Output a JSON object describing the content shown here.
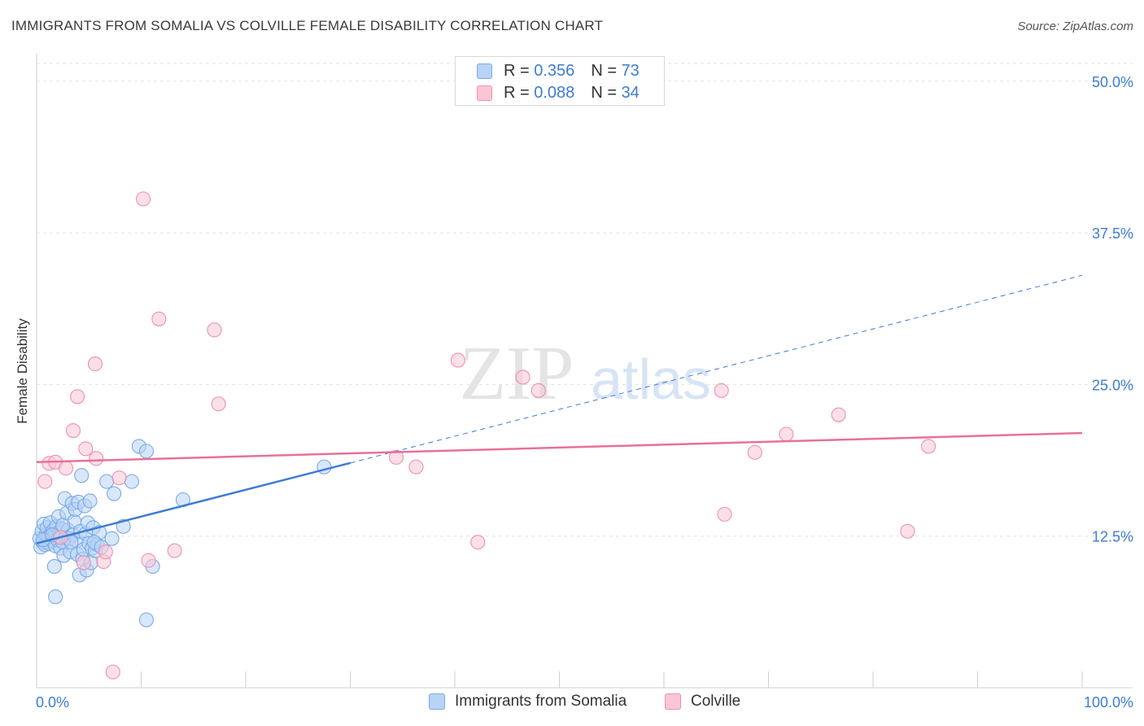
{
  "title": "IMMIGRANTS FROM SOMALIA VS COLVILLE FEMALE DISABILITY CORRELATION CHART",
  "source": "Source: ZipAtlas.com",
  "watermark": {
    "zip": "ZIP",
    "atlas": "atlas"
  },
  "legend": {
    "r_label": "R =",
    "n_label": "N =",
    "entries": [
      {
        "name": "Immigrants from Somalia",
        "r": "0.356",
        "n": "73",
        "color": "#7aaae8",
        "fill": "#b8d3f5"
      },
      {
        "name": "Colville",
        "r": "0.088",
        "n": "34",
        "color": "#ef8fb0",
        "fill": "#f9c6d6"
      }
    ]
  },
  "chart_data": {
    "type": "scatter",
    "title": "IMMIGRANTS FROM SOMALIA VS COLVILLE FEMALE DISABILITY CORRELATION CHART",
    "xlabel": "",
    "ylabel": "Female Disability",
    "xlim": [
      0,
      100
    ],
    "ylim": [
      0,
      52
    ],
    "x_tick_labels": [
      "0.0%",
      "100.0%"
    ],
    "y_ticks": [
      12.5,
      25.0,
      37.5,
      50.0
    ],
    "y_tick_labels": [
      "12.5%",
      "25.0%",
      "37.5%",
      "50.0%"
    ],
    "grid": true,
    "series": [
      {
        "name": "Immigrants from Somalia",
        "color": "#3d7cd4",
        "points": [
          [
            0.3,
            12.3
          ],
          [
            0.4,
            11.6
          ],
          [
            0.5,
            12.9
          ],
          [
            0.6,
            12.0
          ],
          [
            0.7,
            13.5
          ],
          [
            0.8,
            11.8
          ],
          [
            0.9,
            12.6
          ],
          [
            1.0,
            13.2
          ],
          [
            1.1,
            12.4
          ],
          [
            1.2,
            11.9
          ],
          [
            1.3,
            13.6
          ],
          [
            1.4,
            12.7
          ],
          [
            1.5,
            12.1
          ],
          [
            1.6,
            13.0
          ],
          [
            1.7,
            12.5
          ],
          [
            1.8,
            11.7
          ],
          [
            1.9,
            13.3
          ],
          [
            2.0,
            12.2
          ],
          [
            2.1,
            14.1
          ],
          [
            2.2,
            12.8
          ],
          [
            2.3,
            11.5
          ],
          [
            2.4,
            13.1
          ],
          [
            2.5,
            12.0
          ],
          [
            2.6,
            10.9
          ],
          [
            2.7,
            15.6
          ],
          [
            2.8,
            12.4
          ],
          [
            2.9,
            14.4
          ],
          [
            3.0,
            13.0
          ],
          [
            3.1,
            12.3
          ],
          [
            3.2,
            11.2
          ],
          [
            3.4,
            15.2
          ],
          [
            3.5,
            12.6
          ],
          [
            3.6,
            13.7
          ],
          [
            3.7,
            14.7
          ],
          [
            3.8,
            12.1
          ],
          [
            3.9,
            11.0
          ],
          [
            4.0,
            15.3
          ],
          [
            4.1,
            9.3
          ],
          [
            4.2,
            12.9
          ],
          [
            4.3,
            17.5
          ],
          [
            4.4,
            10.6
          ],
          [
            4.5,
            11.4
          ],
          [
            4.6,
            15.0
          ],
          [
            4.7,
            12.7
          ],
          [
            4.8,
            9.7
          ],
          [
            4.9,
            13.6
          ],
          [
            5.0,
            11.9
          ],
          [
            5.1,
            15.4
          ],
          [
            5.2,
            10.3
          ],
          [
            5.3,
            11.5
          ],
          [
            5.4,
            13.2
          ],
          [
            5.6,
            11.3
          ],
          [
            5.8,
            11.8
          ],
          [
            6.0,
            12.8
          ],
          [
            1.7,
            10.0
          ],
          [
            1.8,
            7.5
          ],
          [
            5.5,
            12.0
          ],
          [
            6.2,
            11.6
          ],
          [
            6.7,
            17.0
          ],
          [
            7.2,
            12.3
          ],
          [
            7.4,
            16.0
          ],
          [
            8.3,
            13.3
          ],
          [
            9.1,
            17.0
          ],
          [
            9.8,
            19.9
          ],
          [
            10.5,
            19.5
          ],
          [
            10.5,
            5.6
          ],
          [
            11.1,
            10.0
          ],
          [
            14.0,
            15.5
          ],
          [
            27.5,
            18.2
          ],
          [
            0.6,
            12.2
          ],
          [
            1.5,
            12.6
          ],
          [
            2.5,
            13.4
          ],
          [
            3.3,
            12.0
          ]
        ],
        "trend": {
          "x0": 0,
          "y0": 11.9,
          "x_solid_end": 30,
          "x1": 100,
          "y1": 34.0
        }
      },
      {
        "name": "Colville",
        "color": "#e8709a",
        "points": [
          [
            0.8,
            17.0
          ],
          [
            1.2,
            18.5
          ],
          [
            1.8,
            18.6
          ],
          [
            2.3,
            12.4
          ],
          [
            2.8,
            18.1
          ],
          [
            3.5,
            21.2
          ],
          [
            3.9,
            24.0
          ],
          [
            4.5,
            10.3
          ],
          [
            4.7,
            19.7
          ],
          [
            5.6,
            26.7
          ],
          [
            5.7,
            18.9
          ],
          [
            6.4,
            10.4
          ],
          [
            6.6,
            11.2
          ],
          [
            7.3,
            1.3
          ],
          [
            7.9,
            17.3
          ],
          [
            10.2,
            40.3
          ],
          [
            10.7,
            10.5
          ],
          [
            11.7,
            30.4
          ],
          [
            13.2,
            11.3
          ],
          [
            17.0,
            29.5
          ],
          [
            17.4,
            23.4
          ],
          [
            34.4,
            19.0
          ],
          [
            36.3,
            18.2
          ],
          [
            40.3,
            27.0
          ],
          [
            42.2,
            12.0
          ],
          [
            46.5,
            25.6
          ],
          [
            48.0,
            24.5
          ],
          [
            65.5,
            24.5
          ],
          [
            65.8,
            14.3
          ],
          [
            68.7,
            19.4
          ],
          [
            71.7,
            20.9
          ],
          [
            76.7,
            22.5
          ],
          [
            83.3,
            12.9
          ],
          [
            85.3,
            19.9
          ]
        ],
        "trend": {
          "x0": 0,
          "y0": 18.6,
          "x1": 100,
          "y1": 21.0
        }
      }
    ]
  }
}
